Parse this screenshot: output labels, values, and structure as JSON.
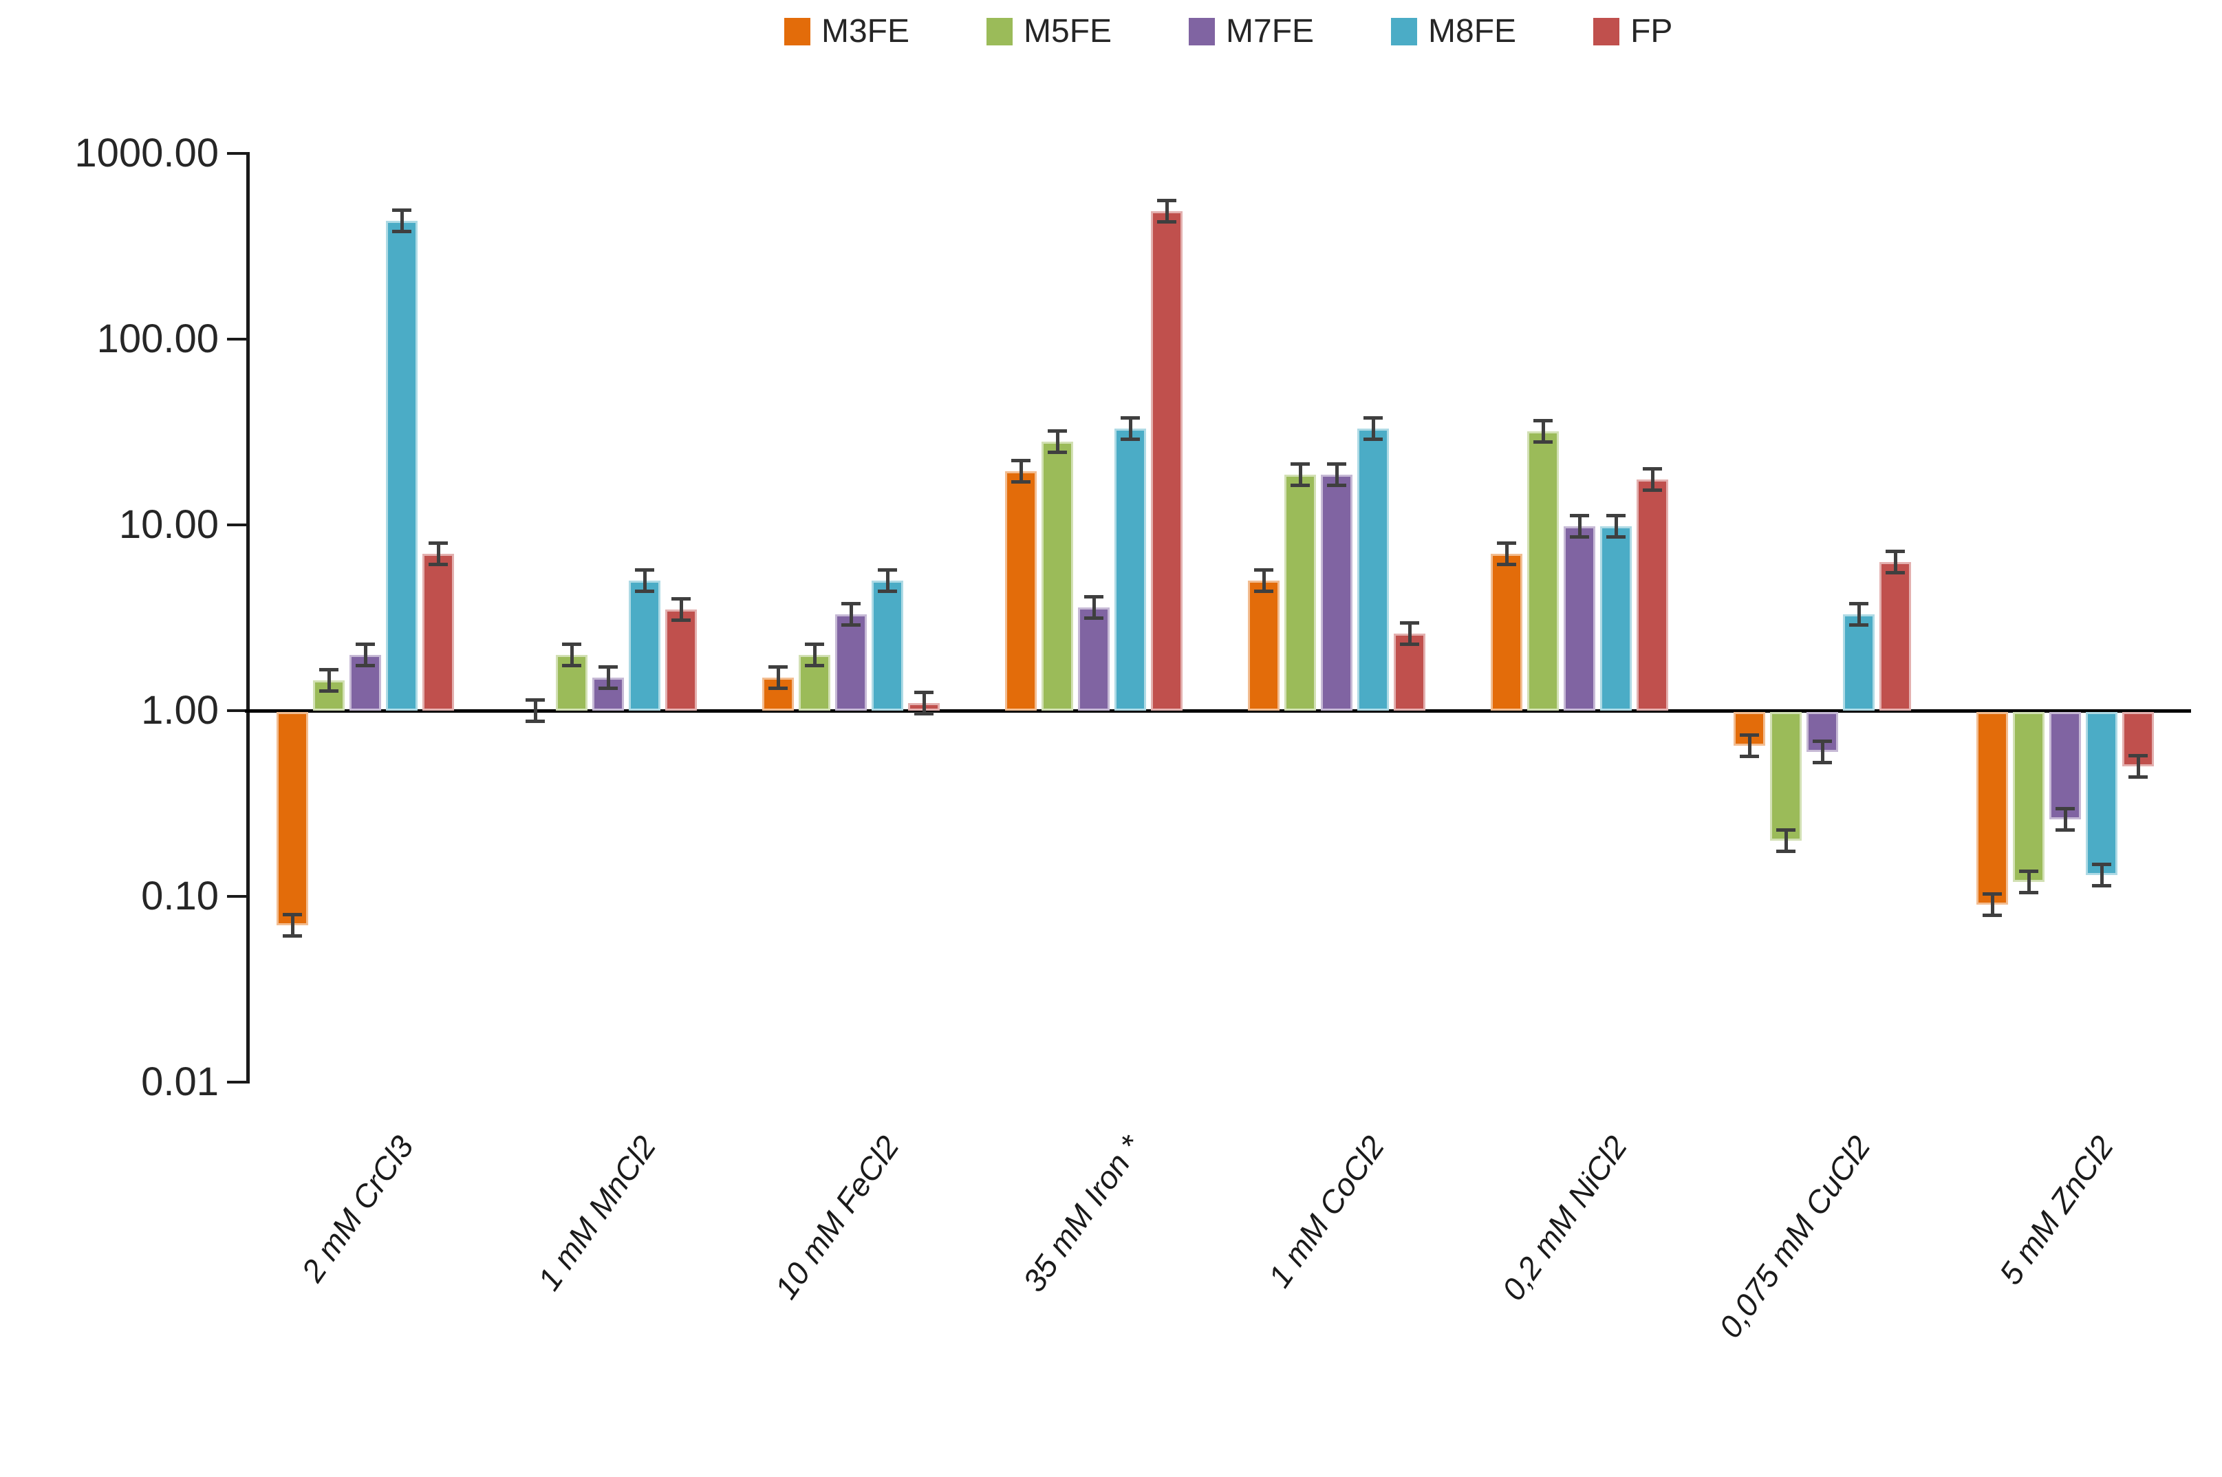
{
  "page": {
    "background": "#FFFFFF"
  },
  "colors": {
    "axis": "#1A1A1A",
    "text": "#262626",
    "error_bar": "#3F3F3F"
  },
  "chart_data": {
    "type": "bar",
    "scale": "log10",
    "title": "",
    "xlabel": "",
    "ylabel": "",
    "grid": false,
    "legend_position": "top",
    "baseline": 1,
    "ylim": [
      0.01,
      1000
    ],
    "y_ticks": [
      {
        "value": 1000,
        "label": "1000.00"
      },
      {
        "value": 100,
        "label": "100.00"
      },
      {
        "value": 10,
        "label": "10.00"
      },
      {
        "value": 1,
        "label": "1.00"
      },
      {
        "value": 0.1,
        "label": "0.10"
      },
      {
        "value": 0.01,
        "label": "0.01"
      }
    ],
    "categories": [
      "2 mM CrCl3",
      "1 mM MnCl2",
      "10 mM FeCl2",
      "35 mM Iron *",
      "1 mM CoCl2",
      "0,2 mM NiCl2",
      "0,075 mM CuCl2",
      "5 mM ZnCl2"
    ],
    "series": [
      {
        "name": "M3FE",
        "color": "#E36C0A",
        "values": [
          0.07,
          1.0,
          1.5,
          19.5,
          5.0,
          7.0,
          0.65,
          0.09
        ]
      },
      {
        "name": "M5FE",
        "color": "#9BBB59",
        "values": [
          1.45,
          2.0,
          2.0,
          28.0,
          18.6,
          32.0,
          0.2,
          0.12
        ]
      },
      {
        "name": "M7FE",
        "color": "#8064A2",
        "values": [
          2.0,
          1.5,
          3.3,
          3.6,
          18.6,
          9.8,
          0.6,
          0.26
        ]
      },
      {
        "name": "M8FE",
        "color": "#4BACC6",
        "values": [
          435.0,
          5.0,
          5.0,
          33.0,
          33.0,
          9.8,
          3.3,
          0.13
        ]
      },
      {
        "name": "FP",
        "color": "#C0504D",
        "values": [
          7.0,
          3.5,
          1.1,
          490.0,
          2.6,
          17.5,
          6.3,
          0.5
        ]
      }
    ],
    "error_rel": 0.12,
    "error_bars": true
  }
}
